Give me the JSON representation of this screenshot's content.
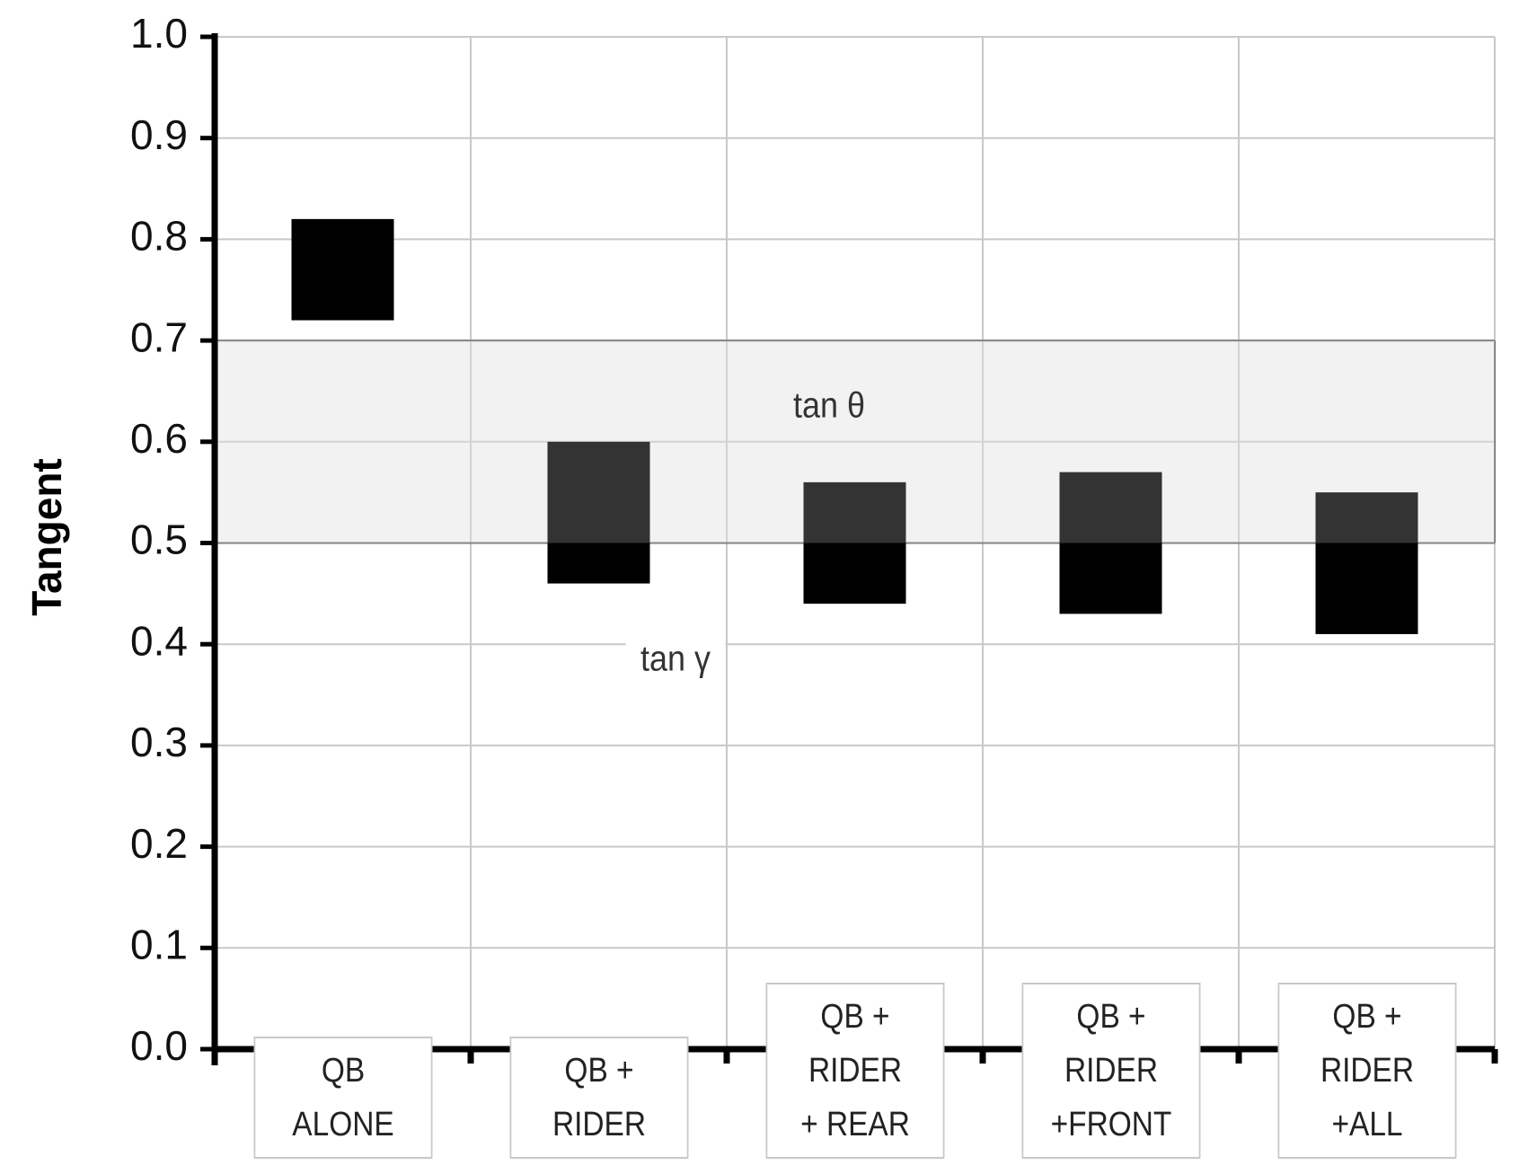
{
  "chart_data": {
    "type": "floating-bar",
    "y_label": "Tangent",
    "categories": [
      "QB\nALONE",
      "QB +\nRIDER",
      "QB +\nRIDER\n+ REAR",
      "QB +\nRIDER\n+FRONT",
      "QB +\nRIDER\n+ALL"
    ],
    "low": [
      0.72,
      0.46,
      0.44,
      0.43,
      0.41
    ],
    "high": [
      0.82,
      0.6,
      0.56,
      0.57,
      0.55
    ],
    "color": "#000000",
    "band": {
      "low": 0.5,
      "high": 0.7,
      "label": "tan θ",
      "color": "#efefef"
    },
    "annotation": "tan γ",
    "ylim": [
      0,
      1
    ],
    "yticks": [
      {
        "value": 0,
        "label": "0.0"
      },
      0.1,
      0.2,
      0.3,
      0.4,
      0.5,
      0.6,
      0.7,
      0.8,
      0.9,
      {
        "value": 1,
        "label": "1.0"
      }
    ],
    "grid": true
  }
}
